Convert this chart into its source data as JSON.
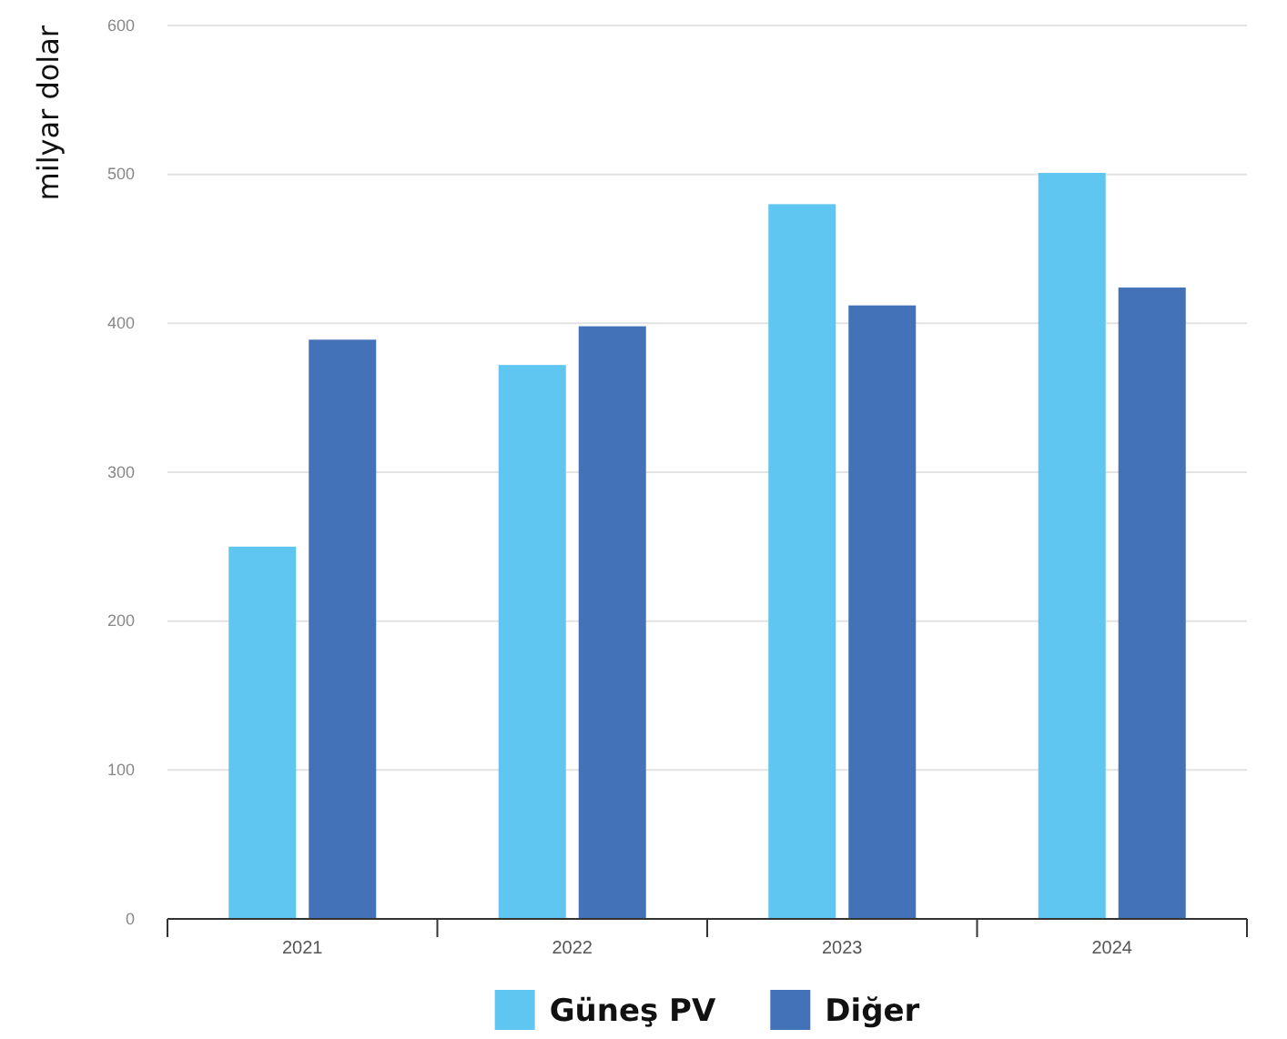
{
  "chart_data": {
    "type": "bar",
    "ylabel": "milyar dolar",
    "categories": [
      "2021",
      "2022",
      "2023",
      "2024"
    ],
    "series": [
      {
        "name": "Güneş PV",
        "color": "#5fc6f2",
        "values": [
          250,
          372,
          480,
          501
        ]
      },
      {
        "name": "Diğer",
        "color": "#4472b8",
        "values": [
          389,
          398,
          412,
          424
        ]
      }
    ],
    "ylim": [
      0,
      600
    ],
    "yticks": [
      0,
      100,
      200,
      300,
      400,
      500,
      600
    ],
    "grid": "y",
    "legend": "bottom"
  }
}
